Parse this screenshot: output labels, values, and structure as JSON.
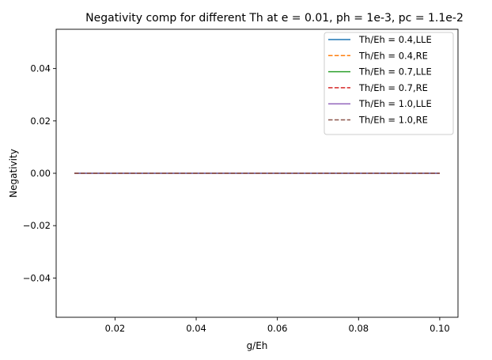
{
  "chart_data": {
    "type": "line",
    "title": "Negativity comp for different Th at e = 0.01, ph = 1e-3, pc = 1.1e-2",
    "xlabel": "g/Eh",
    "ylabel": "Negativity",
    "xlim": [
      0.0055,
      0.1045
    ],
    "ylim": [
      -0.055,
      0.055
    ],
    "xticks": [
      0.02,
      0.04,
      0.06,
      0.08,
      0.1
    ],
    "xtick_labels": [
      "0.02",
      "0.04",
      "0.06",
      "0.08",
      "0.10"
    ],
    "yticks": [
      -0.04,
      -0.02,
      0.0,
      0.02,
      0.04
    ],
    "ytick_labels": [
      "−0.04",
      "−0.02",
      "0.00",
      "0.02",
      "0.04"
    ],
    "grid": false,
    "legend_position": "top-right",
    "x": [
      0.01,
      0.1
    ],
    "series": [
      {
        "name": "Th/Eh = 0.4,LLE",
        "values": [
          0,
          0
        ],
        "color": "#1f77b4",
        "dash": "solid"
      },
      {
        "name": "Th/Eh = 0.4,RE",
        "values": [
          0,
          0
        ],
        "color": "#ff7f0e",
        "dash": "dashed"
      },
      {
        "name": "Th/Eh = 0.7,LLE",
        "values": [
          0,
          0
        ],
        "color": "#2ca02c",
        "dash": "solid"
      },
      {
        "name": "Th/Eh = 0.7,RE",
        "values": [
          0,
          0
        ],
        "color": "#d62728",
        "dash": "dashed"
      },
      {
        "name": "Th/Eh = 1.0,LLE",
        "values": [
          0,
          0
        ],
        "color": "#9467bd",
        "dash": "solid"
      },
      {
        "name": "Th/Eh = 1.0,RE",
        "values": [
          0,
          0
        ],
        "color": "#8c564b",
        "dash": "dashed"
      }
    ]
  }
}
